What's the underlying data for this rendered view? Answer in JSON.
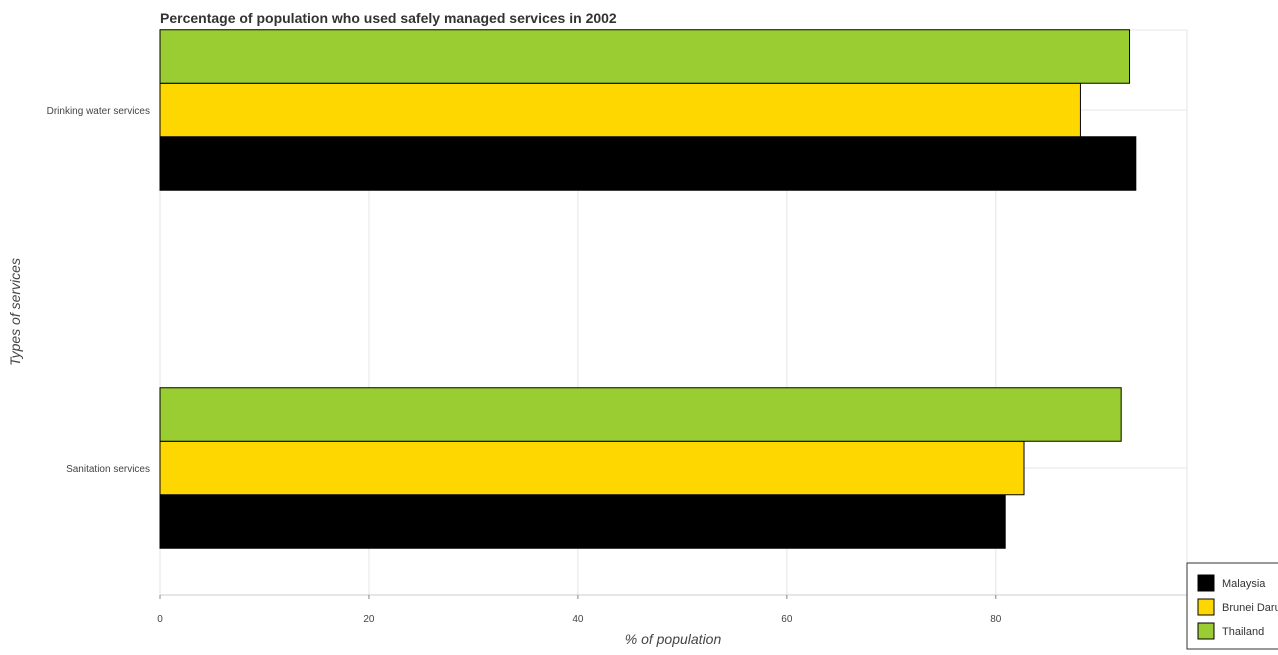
{
  "chart_data": {
    "type": "bar",
    "orientation": "horizontal",
    "title": "Percentage of population who used safely managed services in 2002",
    "xlabel": "% of population",
    "ylabel": "Types of services",
    "xlim": [
      0,
      98.3
    ],
    "x_ticks": [
      0,
      20,
      40,
      60,
      80
    ],
    "categories": [
      "Drinking water services",
      "Sanitation services"
    ],
    "series": [
      {
        "name": "Malaysia",
        "color": "#000000",
        "values": [
          93.4,
          80.9
        ]
      },
      {
        "name": "Brunei Darussalam",
        "color": "#FFD700",
        "values": [
          88.1,
          82.7
        ]
      },
      {
        "name": "Thailand",
        "color": "#9ACD32",
        "values": [
          92.8,
          92.0
        ]
      }
    ],
    "grid": true,
    "legend_position": "bottom-right"
  }
}
